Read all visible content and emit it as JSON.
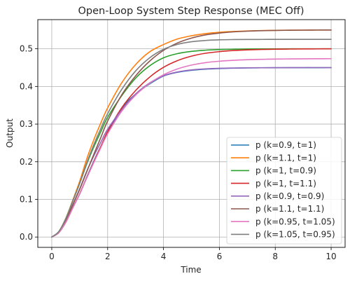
{
  "chart_data": {
    "type": "line",
    "title": "Open-Loop System Step Response (MEC Off)",
    "xlabel": "Time",
    "ylabel": "Output",
    "xlim": [
      -0.5,
      10.5
    ],
    "ylim": [
      -0.0275,
      0.5775
    ],
    "xticks": [
      0,
      2,
      4,
      6,
      8,
      10
    ],
    "yticks": [
      0.0,
      0.1,
      0.2,
      0.3,
      0.4,
      0.5
    ],
    "xtick_labels": [
      "0",
      "2",
      "4",
      "6",
      "8",
      "10"
    ],
    "ytick_labels": [
      "0.0",
      "0.1",
      "0.2",
      "0.3",
      "0.4",
      "0.5"
    ],
    "grid": true,
    "legend_position": "lower-right",
    "x": [
      0,
      0.25,
      0.5,
      0.75,
      1,
      1.25,
      1.5,
      1.75,
      2,
      2.5,
      3,
      3.5,
      4,
      4.5,
      5,
      5.5,
      6,
      6.5,
      7,
      7.5,
      8,
      8.5,
      9,
      9.5,
      10
    ],
    "series": [
      {
        "name": "p (k=0.9, t=1)",
        "color": "#1f77b4",
        "values": [
          0.0,
          0.0117,
          0.0394,
          0.0781,
          0.1142,
          0.1586,
          0.2007,
          0.2398,
          0.275,
          0.3413,
          0.3796,
          0.4065,
          0.4276,
          0.4376,
          0.4429,
          0.4459,
          0.4476,
          0.4486,
          0.4492,
          0.4495,
          0.4497,
          0.4498,
          0.4499,
          0.4499,
          0.45
        ]
      },
      {
        "name": "p (k=1.1, t=1)",
        "color": "#ff7f0e",
        "values": [
          0.0,
          0.0143,
          0.0493,
          0.0974,
          0.148,
          0.2069,
          0.2573,
          0.3021,
          0.343,
          0.4091,
          0.4579,
          0.4918,
          0.5113,
          0.5261,
          0.5346,
          0.5404,
          0.544,
          0.546,
          0.5474,
          0.5484,
          0.549,
          0.5494,
          0.5496,
          0.5498,
          0.55
        ]
      },
      {
        "name": "p (k=1, t=0.9)",
        "color": "#2ca02c",
        "values": [
          0.0,
          0.0144,
          0.0486,
          0.0955,
          0.1422,
          0.1937,
          0.2385,
          0.2788,
          0.318,
          0.375,
          0.422,
          0.4545,
          0.476,
          0.4872,
          0.4932,
          0.4963,
          0.498,
          0.4989,
          0.4994,
          0.4997,
          0.4998,
          0.4999,
          0.5,
          0.5,
          0.5
        ]
      },
      {
        "name": "p (k=1, t=1.1)",
        "color": "#d62728",
        "values": [
          0.0,
          0.0115,
          0.0388,
          0.0771,
          0.1151,
          0.1573,
          0.1989,
          0.2394,
          0.28,
          0.3428,
          0.389,
          0.4245,
          0.4507,
          0.4686,
          0.4804,
          0.4881,
          0.4925,
          0.4954,
          0.4971,
          0.4982,
          0.4989,
          0.4993,
          0.4996,
          0.4998,
          0.5
        ]
      },
      {
        "name": "p (k=0.9, t=0.9)",
        "color": "#9467bd",
        "values": [
          0.0,
          0.013,
          0.0437,
          0.0859,
          0.128,
          0.1743,
          0.2147,
          0.2509,
          0.2862,
          0.3375,
          0.3798,
          0.4091,
          0.4284,
          0.4385,
          0.4439,
          0.4467,
          0.4482,
          0.449,
          0.4495,
          0.4497,
          0.4498,
          0.4499,
          0.45,
          0.45,
          0.45
        ]
      },
      {
        "name": "p (k=1.1, t=1.1)",
        "color": "#8c564b",
        "values": [
          0.0,
          0.0127,
          0.0427,
          0.0848,
          0.1266,
          0.173,
          0.2188,
          0.2633,
          0.308,
          0.3771,
          0.4279,
          0.467,
          0.4958,
          0.5155,
          0.5284,
          0.5369,
          0.5418,
          0.5449,
          0.5468,
          0.548,
          0.5488,
          0.5492,
          0.5496,
          0.5498,
          0.55
        ]
      },
      {
        "name": "p (k=0.95, t=1.05)",
        "color": "#e377c2",
        "values": [
          0.0,
          0.0115,
          0.0388,
          0.077,
          0.1143,
          0.1565,
          0.1973,
          0.2366,
          0.2745,
          0.3339,
          0.3768,
          0.4081,
          0.431,
          0.4465,
          0.4567,
          0.4632,
          0.467,
          0.4694,
          0.471,
          0.472,
          0.4727,
          0.4731,
          0.4734,
          0.4736,
          0.4737
        ]
      },
      {
        "name": "p (k=1.05, t=0.95)",
        "color": "#7f7f7f",
        "values": [
          0.0,
          0.0143,
          0.0483,
          0.0951,
          0.1428,
          0.1963,
          0.2443,
          0.2872,
          0.3275,
          0.3916,
          0.441,
          0.4759,
          0.4986,
          0.5117,
          0.5187,
          0.5221,
          0.5238,
          0.5245,
          0.5248,
          0.5249,
          0.525,
          0.525,
          0.525,
          0.525,
          0.525
        ]
      }
    ]
  }
}
